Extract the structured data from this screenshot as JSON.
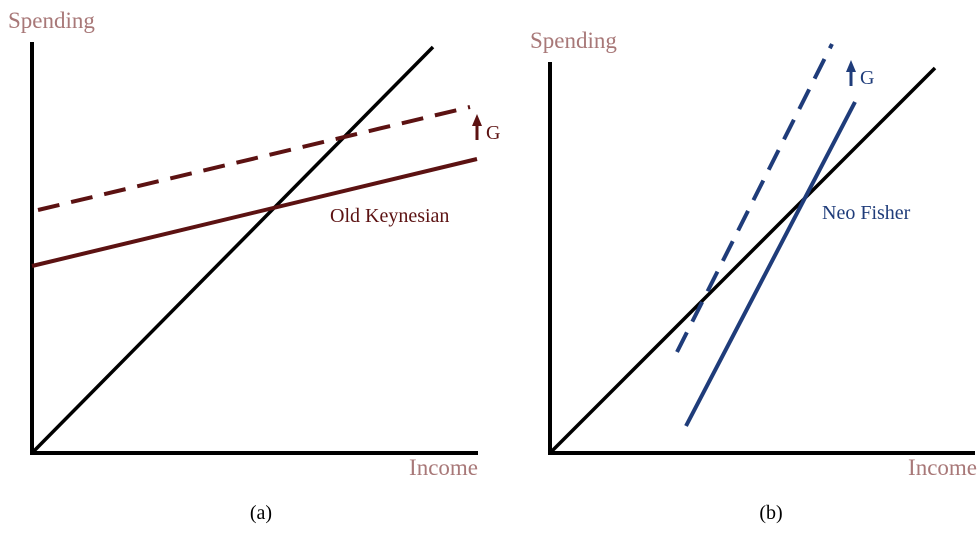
{
  "panels": [
    {
      "caption": "(a)",
      "y_axis_label": "Spending",
      "x_axis_label": "Income",
      "curve_label": "Old Keynesian",
      "shift_label": "G"
    },
    {
      "caption": "(b)",
      "y_axis_label": "Spending",
      "x_axis_label": "Income",
      "curve_label": "Neo Fisher",
      "shift_label": "G"
    }
  ]
}
